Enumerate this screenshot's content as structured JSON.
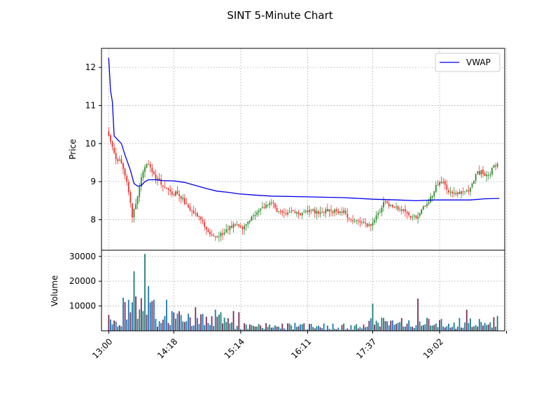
{
  "chart_data": {
    "type": "candlestick",
    "title": "SINT 5-Minute Chart",
    "price_panel": {
      "ylabel": "Price",
      "ylim": [
        7.2,
        12.5
      ],
      "yticks": [
        8,
        9,
        10,
        11,
        12
      ],
      "grid": true,
      "legend": {
        "placement": "top-right",
        "entries": [
          {
            "label": "VWAP",
            "color": "#0000ee"
          }
        ]
      }
    },
    "volume_panel": {
      "ylabel": "Volume",
      "ylim": [
        0,
        32500
      ],
      "yticks": [
        10000,
        20000,
        30000
      ],
      "grid": true
    },
    "x_axis": {
      "xlim": [
        -4,
        219
      ],
      "tick_index": [
        0,
        36,
        73,
        110,
        146,
        183,
        220
      ],
      "tick_labels": [
        "13:00",
        "14:18",
        "15:14",
        "16:11",
        "17:37",
        "19:02",
        ""
      ]
    },
    "colors": {
      "up": "#2e8b2e",
      "down": "#e8322d",
      "vwap": "#0000ee",
      "volume_up": "#1f7f7a",
      "volume_down": "#7a2f5e",
      "volume_neutral": "#1f77b4"
    },
    "bars_count": 216,
    "vwap_points": [
      [
        0,
        12.25
      ],
      [
        1,
        11.4
      ],
      [
        2,
        11.1
      ],
      [
        3,
        10.2
      ],
      [
        5,
        10.1
      ],
      [
        7,
        10.0
      ],
      [
        9,
        9.7
      ],
      [
        12,
        9.3
      ],
      [
        14,
        8.95
      ],
      [
        16,
        8.88
      ],
      [
        18,
        8.9
      ],
      [
        20,
        9.0
      ],
      [
        22,
        9.05
      ],
      [
        26,
        9.05
      ],
      [
        30,
        9.03
      ],
      [
        36,
        9.02
      ],
      [
        42,
        8.98
      ],
      [
        48,
        8.9
      ],
      [
        54,
        8.82
      ],
      [
        60,
        8.75
      ],
      [
        66,
        8.72
      ],
      [
        72,
        8.68
      ],
      [
        80,
        8.65
      ],
      [
        90,
        8.62
      ],
      [
        110,
        8.6
      ],
      [
        130,
        8.58
      ],
      [
        146,
        8.54
      ],
      [
        160,
        8.52
      ],
      [
        170,
        8.5
      ],
      [
        180,
        8.52
      ],
      [
        190,
        8.52
      ],
      [
        200,
        8.52
      ],
      [
        208,
        8.55
      ],
      [
        216,
        8.56
      ]
    ],
    "anchor_closes": [
      [
        0,
        10.2
      ],
      [
        1,
        10.0
      ],
      [
        2,
        9.9
      ],
      [
        3,
        9.7
      ],
      [
        4,
        9.6
      ],
      [
        6,
        9.55
      ],
      [
        8,
        9.3
      ],
      [
        10,
        9.0
      ],
      [
        12,
        8.4
      ],
      [
        13,
        8.1
      ],
      [
        15,
        8.4
      ],
      [
        17,
        8.9
      ],
      [
        19,
        9.3
      ],
      [
        20,
        9.4
      ],
      [
        22,
        9.5
      ],
      [
        24,
        9.3
      ],
      [
        26,
        9.1
      ],
      [
        28,
        9.0
      ],
      [
        31,
        8.9
      ],
      [
        34,
        8.7
      ],
      [
        37,
        8.7
      ],
      [
        40,
        8.6
      ],
      [
        43,
        8.4
      ],
      [
        46,
        8.2
      ],
      [
        50,
        8.05
      ],
      [
        55,
        7.7
      ],
      [
        58,
        7.55
      ],
      [
        60,
        7.5
      ],
      [
        63,
        7.65
      ],
      [
        67,
        7.8
      ],
      [
        70,
        7.85
      ],
      [
        74,
        7.75
      ],
      [
        78,
        8.0
      ],
      [
        82,
        8.2
      ],
      [
        86,
        8.35
      ],
      [
        90,
        8.45
      ],
      [
        94,
        8.2
      ],
      [
        98,
        8.15
      ],
      [
        102,
        8.2
      ],
      [
        106,
        8.15
      ],
      [
        110,
        8.25
      ],
      [
        114,
        8.2
      ],
      [
        118,
        8.2
      ],
      [
        122,
        8.25
      ],
      [
        126,
        8.2
      ],
      [
        130,
        8.2
      ],
      [
        134,
        8.0
      ],
      [
        138,
        7.95
      ],
      [
        142,
        7.85
      ],
      [
        146,
        7.9
      ],
      [
        150,
        8.25
      ],
      [
        153,
        8.5
      ],
      [
        156,
        8.35
      ],
      [
        160,
        8.3
      ],
      [
        164,
        8.25
      ],
      [
        168,
        8.05
      ],
      [
        171,
        8.1
      ],
      [
        175,
        8.4
      ],
      [
        178,
        8.55
      ],
      [
        181,
        8.9
      ],
      [
        184,
        9.0
      ],
      [
        188,
        8.75
      ],
      [
        192,
        8.7
      ],
      [
        196,
        8.7
      ],
      [
        200,
        8.8
      ],
      [
        203,
        9.2
      ],
      [
        206,
        9.25
      ],
      [
        210,
        9.15
      ],
      [
        213,
        9.4
      ],
      [
        216,
        9.55
      ]
    ]
  }
}
